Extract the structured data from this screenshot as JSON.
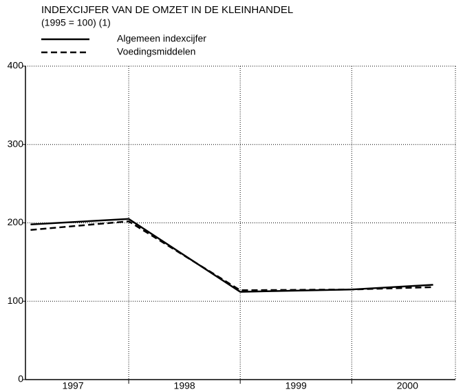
{
  "chart_data": {
    "type": "line",
    "title": "INDEXCIJFER VAN DE OMZET IN DE KLEINHANDEL",
    "subtitle": "(1995 = 100) (1)",
    "x": [
      1997.12,
      1998.0,
      1999.0,
      2000.0,
      2000.73
    ],
    "series": [
      {
        "name": "Algemeen indexcijfer",
        "color": "#000000",
        "dash": "solid",
        "values": [
          198,
          205,
          112,
          115,
          121
        ]
      },
      {
        "name": "Voedingsmiddelen",
        "color": "#000000",
        "dash": "dashed",
        "values": [
          191,
          202,
          114,
          115,
          118
        ]
      }
    ],
    "xlim": [
      1997.074,
      2000.93
    ],
    "xticks": [
      {
        "value": 1997.5,
        "label": "1997"
      },
      {
        "value": 1998.5,
        "label": "1998"
      },
      {
        "value": 1999.5,
        "label": "1999"
      },
      {
        "value": 2000.5,
        "label": "2000"
      }
    ],
    "xgrid": [
      1998,
      1999,
      2000
    ],
    "ylim": [
      0,
      400
    ],
    "yticks": [
      0,
      100,
      200,
      300,
      400
    ],
    "grid": true
  }
}
